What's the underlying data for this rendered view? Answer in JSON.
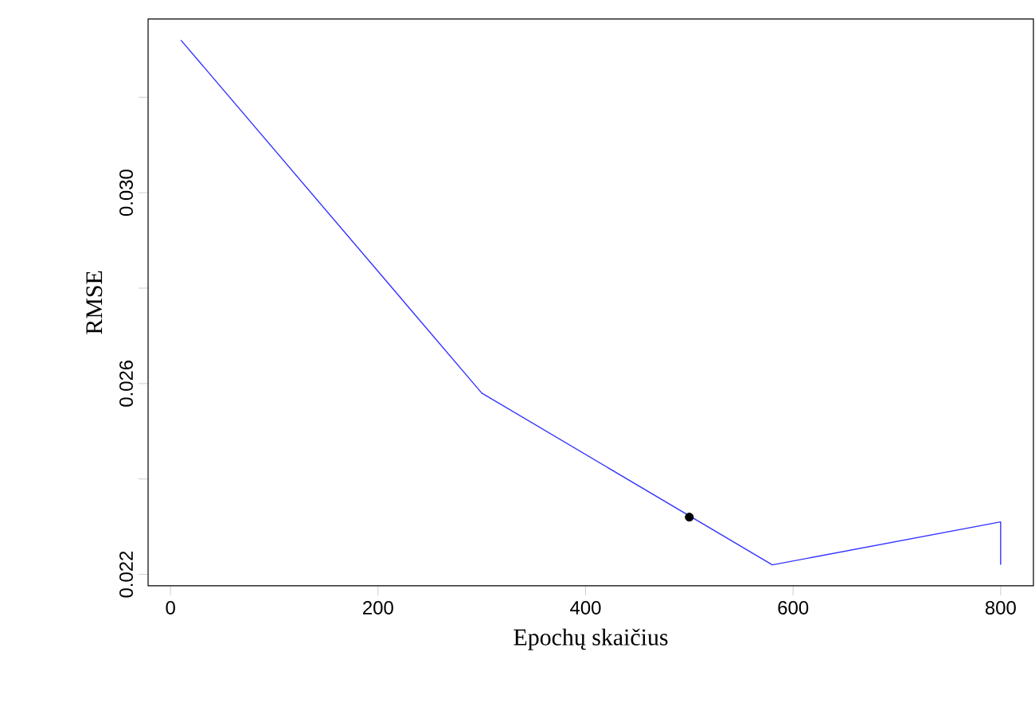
{
  "chart_data": {
    "type": "line",
    "xlabel": "Epochų skaičius",
    "ylabel": "RMSE",
    "xlim": [
      -21.6,
      831.6
    ],
    "ylim": [
      0.02176,
      0.03364
    ],
    "xticks": [
      0,
      200,
      400,
      600,
      800
    ],
    "yticks": [
      0.022,
      {
        "value": 0.024,
        "label": null
      },
      0.026,
      {
        "value": 0.028,
        "label": null
      },
      {
        "value": 0.03,
        "label": "0.030"
      },
      {
        "value": 0.032,
        "label": null
      }
    ],
    "grid": false,
    "marker": "none",
    "line_style": "solid",
    "series": [
      {
        "color": "#3333ff",
        "x": [
          10,
          300,
          580,
          800,
          800
        ],
        "values": [
          0.0332,
          0.0258,
          0.0222,
          0.0231,
          0.0222
        ]
      },
      {
        "type": "scatter",
        "marker": "circle",
        "color": "#000000",
        "x": [
          500
        ],
        "values": [
          0.0232
        ]
      }
    ]
  }
}
